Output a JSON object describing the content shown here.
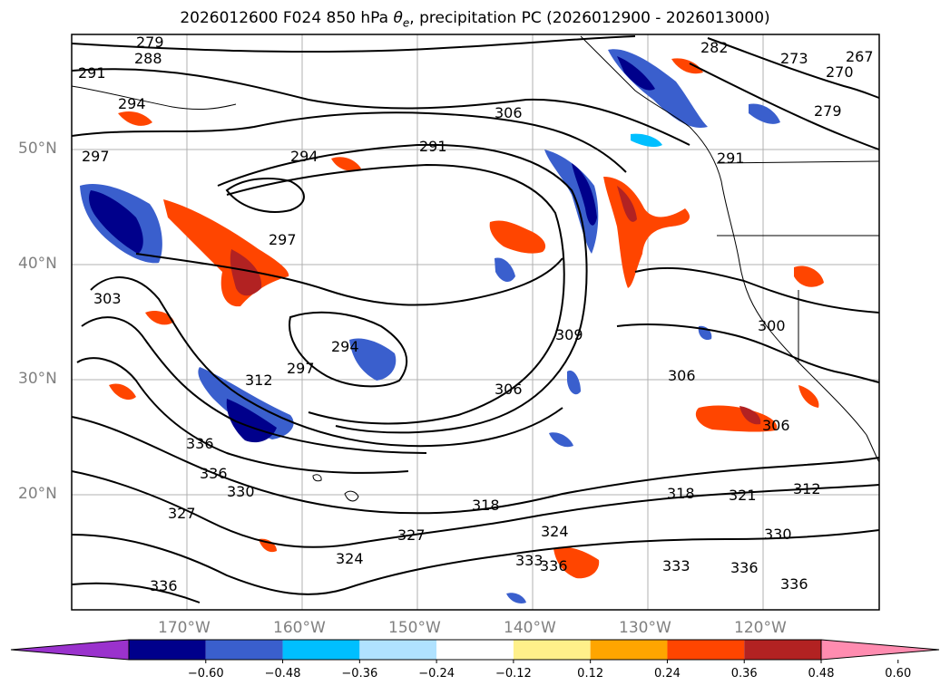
{
  "title": {
    "prefix": "2026012600 F024 850 hPa ",
    "theta": "θ",
    "theta_sub": "e",
    "suffix": ", precipitation PC (2026012900 - 2026013000)"
  },
  "map": {
    "lat_labels": [
      "50°N",
      "40°N",
      "30°N",
      "20°N"
    ],
    "lon_labels": [
      "170°W",
      "160°W",
      "150°W",
      "140°W",
      "130°W",
      "120°W"
    ],
    "contour_labels": [
      "279",
      "288",
      "291",
      "294",
      "297",
      "291",
      "294",
      "306",
      "291",
      "297",
      "303",
      "294",
      "297",
      "309",
      "306",
      "306",
      "312",
      "336",
      "336",
      "330",
      "327",
      "318",
      "327",
      "324",
      "333",
      "336",
      "318",
      "321",
      "312",
      "330",
      "333",
      "336",
      "336",
      "273",
      "270",
      "267",
      "279",
      "282",
      "300",
      "306",
      "336",
      "324"
    ],
    "colors": {
      "land_outline": "#000000",
      "grid": "#b0b0b0",
      "contour": "#000000"
    }
  },
  "colorbar": {
    "ticks": [
      "−0.60",
      "−0.48",
      "−0.36",
      "−0.24",
      "−0.12",
      "0.12",
      "0.24",
      "0.36",
      "0.48",
      "0.60"
    ],
    "colors": [
      "#9a32cd",
      "#00008b",
      "#3a5fcd",
      "#00bfff",
      "#b0e2ff",
      "#ffffff",
      "#fff08a",
      "#ffa500",
      "#ff4500",
      "#b22222",
      "#ff8cb0"
    ]
  }
}
